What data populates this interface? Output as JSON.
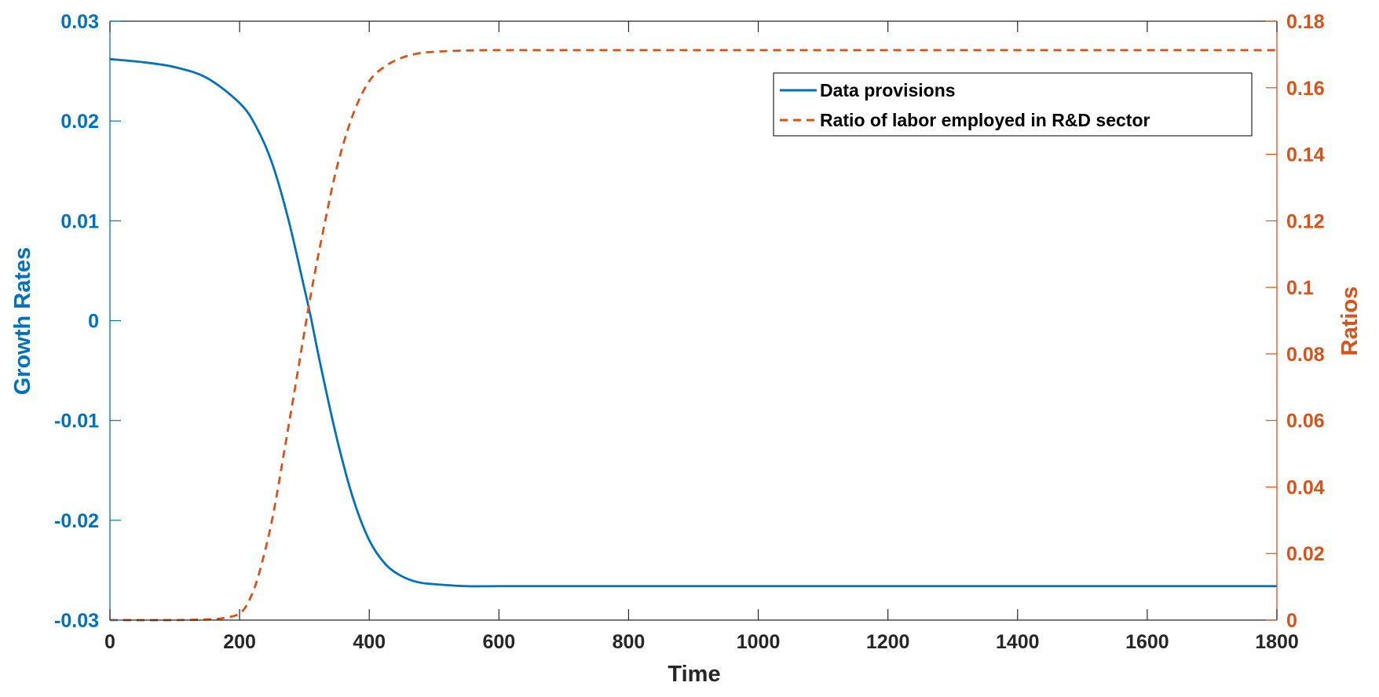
{
  "chart_data": {
    "type": "line",
    "title": "",
    "xlabel": "Time",
    "ylabel_left": "Growth Rates",
    "ylabel_right": "Ratios",
    "xlim": [
      0,
      1800
    ],
    "ylim_left": [
      -0.03,
      0.03
    ],
    "ylim_right": [
      0,
      0.18
    ],
    "x_ticks": [
      "0",
      "200",
      "400",
      "600",
      "800",
      "1000",
      "1200",
      "1400",
      "1600",
      "1800"
    ],
    "y_left_ticks": [
      "-0.03",
      "-0.02",
      "-0.01",
      "0",
      "0.01",
      "0.02",
      "0.03"
    ],
    "y_right_ticks": [
      "0",
      "0.02",
      "0.04",
      "0.06",
      "0.08",
      "0.1",
      "0.12",
      "0.14",
      "0.16",
      "0.18"
    ],
    "grid": false,
    "legend_position": "top-right",
    "series": [
      {
        "name": "Data provisions",
        "axis": "left",
        "color": "#0072BD",
        "style": "solid",
        "x": [
          0,
          50,
          100,
          150,
          200,
          225,
          250,
          275,
          300,
          310,
          325,
          350,
          375,
          400,
          425,
          450,
          475,
          500,
          550,
          600,
          700,
          800,
          1000,
          1200,
          1400,
          1600,
          1800
        ],
        "y": [
          0.0262,
          0.0259,
          0.0254,
          0.0243,
          0.0218,
          0.0195,
          0.0158,
          0.0102,
          0.0032,
          0.0003,
          -0.0045,
          -0.0118,
          -0.0178,
          -0.022,
          -0.0244,
          -0.0256,
          -0.0262,
          -0.0264,
          -0.0266,
          -0.0266,
          -0.0266,
          -0.0266,
          -0.0266,
          -0.0266,
          -0.0266,
          -0.0266,
          -0.0266
        ]
      },
      {
        "name": "Ratio of labor employed in R&D sector",
        "axis": "right",
        "color": "#D95319",
        "style": "dashed",
        "x": [
          0,
          100,
          150,
          175,
          200,
          215,
          230,
          250,
          270,
          290,
          310,
          330,
          350,
          375,
          400,
          425,
          450,
          475,
          500,
          550,
          600,
          700,
          800,
          1000,
          1200,
          1400,
          1600,
          1800
        ],
        "y": [
          0.0,
          0.0,
          0.0002,
          0.0006,
          0.002,
          0.006,
          0.014,
          0.03,
          0.052,
          0.075,
          0.098,
          0.118,
          0.136,
          0.152,
          0.162,
          0.1665,
          0.169,
          0.1703,
          0.1708,
          0.1712,
          0.1713,
          0.1713,
          0.1713,
          0.1713,
          0.1713,
          0.1713,
          0.1713,
          0.1713
        ]
      }
    ]
  }
}
